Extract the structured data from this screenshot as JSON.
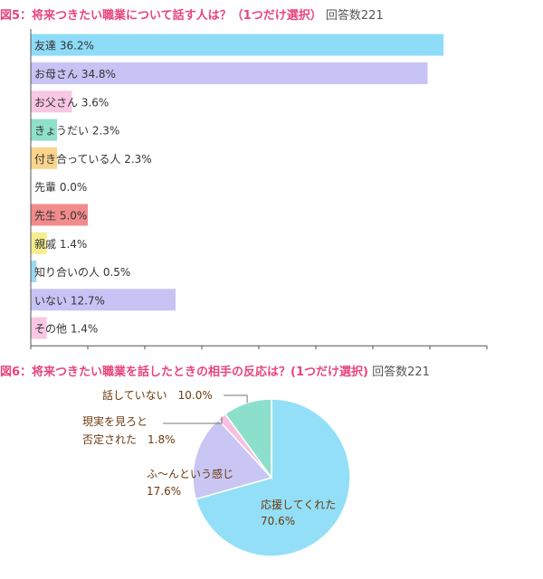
{
  "figure5": {
    "title": "図5：将来つきたい職業について話す人は？（1つだけ選択）",
    "count_label": "回答数221"
  },
  "figure6": {
    "title": "図6：将来つきたい職業を話したときの相手の反応は？(1つだけ選択)",
    "count_label": "回答数221"
  },
  "chart_data": [
    {
      "type": "bar",
      "orientation": "horizontal",
      "categories": [
        "友達",
        "お母さん",
        "お父さん",
        "きょうだい",
        "付き合っている人",
        "先輩",
        "先生",
        "親戚",
        "知り合いの人",
        "いない",
        "その他"
      ],
      "values": [
        36.2,
        34.8,
        3.6,
        2.3,
        2.3,
        0.0,
        5.0,
        1.4,
        0.5,
        12.7,
        1.4
      ],
      "value_labels": [
        "36.2%",
        "34.8%",
        "3.6%",
        "2.3%",
        "2.3%",
        "0.0%",
        "5.0%",
        "1.4%",
        "0.5%",
        "12.7%",
        "1.4%"
      ],
      "colors": [
        "#8fdcf8",
        "#c7c3f4",
        "#f9c6e4",
        "#8fe0c9",
        "#fbd48c",
        "#cccccc",
        "#f28c8c",
        "#f6ee8c",
        "#9fd8f2",
        "#c7c3f4",
        "#f9c6e4"
      ],
      "xlim": [
        0,
        40
      ],
      "xticks": [
        "0",
        "5",
        "10",
        "15",
        "20",
        "25",
        "30",
        "35",
        "40"
      ],
      "grid": false
    },
    {
      "type": "pie",
      "categories": [
        "応援してくれた",
        "ふ〜んという感じ",
        "現実を見ろと否定された",
        "話していない"
      ],
      "label_lines": [
        [
          "応援してくれた",
          "70.6%"
        ],
        [
          "ふ〜んという感じ",
          "17.6%"
        ],
        [
          "現実を見ろと",
          "否定された　1.8%"
        ],
        [
          "話していない　10.0%"
        ]
      ],
      "values": [
        70.6,
        17.6,
        1.8,
        10.0
      ],
      "colors": [
        "#93dff8",
        "#c9c6f3",
        "#f7bfe0",
        "#8ce0cb"
      ]
    }
  ]
}
